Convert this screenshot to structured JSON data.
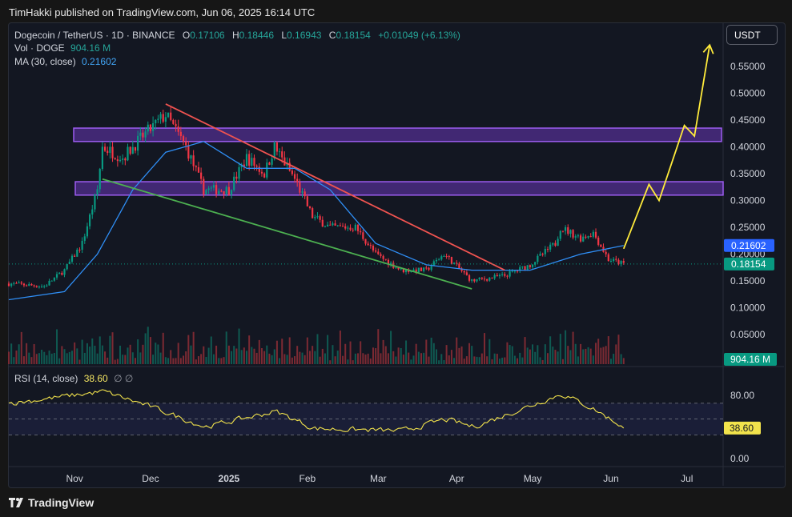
{
  "header": {
    "published": "TimHakki published on TradingView.com, Jun 06, 2025 16:14 UTC"
  },
  "legend": {
    "symbol": "Dogecoin / TetherUS · 1D · BINANCE",
    "o_label": "O",
    "o": "0.17106",
    "h_label": "H",
    "h": "0.18446",
    "l_label": "L",
    "l": "0.16943",
    "c_label": "C",
    "c": "0.18154",
    "change": "+0.01049 (+6.13%)",
    "vol_label": "Vol · DOGE",
    "vol": "904.16 M",
    "ma_label": "MA (30, close)",
    "ma": "0.21602",
    "rsi_label": "RSI (14, close)",
    "rsi": "38.60",
    "rsi_flags": "∅ ∅"
  },
  "currency_button": "USDT",
  "footer": {
    "brand": "TradingView"
  },
  "chart_data": {
    "type": "candlestick",
    "title": "Dogecoin / TetherUS · 1D · BINANCE",
    "price_ticks": [
      "0.55000",
      "0.50000",
      "0.45000",
      "0.40000",
      "0.35000",
      "0.30000",
      "0.25000",
      "0.20000",
      "0.15000",
      "0.10000",
      "0.05000"
    ],
    "price_tick_values": [
      0.55,
      0.5,
      0.45,
      0.4,
      0.35,
      0.3,
      0.25,
      0.2,
      0.15,
      0.1,
      0.05
    ],
    "ylim": [
      0.0,
      0.6
    ],
    "x_labels": [
      "Nov",
      "Dec",
      "2025",
      "Feb",
      "Mar",
      "Apr",
      "May",
      "Jun",
      "Jul"
    ],
    "rsi_ticks": [
      "80.00",
      "0.00"
    ],
    "rsi_tick_values": [
      80,
      0
    ],
    "price_badges": [
      {
        "label": "0.21602",
        "value": 0.21602,
        "color": "#2962ff"
      },
      {
        "label": "0.18154",
        "value": 0.18154,
        "color": "#089981"
      }
    ],
    "volume_badge": "904.16 M",
    "rsi_badge": "38.60",
    "close_series_approx": [
      {
        "x": "2024-10-06",
        "y": 0.145
      },
      {
        "x": "2024-10-20",
        "y": 0.14
      },
      {
        "x": "2024-10-28",
        "y": 0.17
      },
      {
        "x": "2024-11-04",
        "y": 0.22
      },
      {
        "x": "2024-11-10",
        "y": 0.32
      },
      {
        "x": "2024-11-12",
        "y": 0.4
      },
      {
        "x": "2024-11-20",
        "y": 0.38
      },
      {
        "x": "2024-11-28",
        "y": 0.42
      },
      {
        "x": "2024-12-07",
        "y": 0.46
      },
      {
        "x": "2024-12-15",
        "y": 0.4
      },
      {
        "x": "2024-12-22",
        "y": 0.32
      },
      {
        "x": "2025-01-01",
        "y": 0.32
      },
      {
        "x": "2025-01-08",
        "y": 0.38
      },
      {
        "x": "2025-01-15",
        "y": 0.35
      },
      {
        "x": "2025-01-19",
        "y": 0.4
      },
      {
        "x": "2025-01-27",
        "y": 0.34
      },
      {
        "x": "2025-02-03",
        "y": 0.27
      },
      {
        "x": "2025-02-10",
        "y": 0.25
      },
      {
        "x": "2025-02-20",
        "y": 0.25
      },
      {
        "x": "2025-02-28",
        "y": 0.2
      },
      {
        "x": "2025-03-10",
        "y": 0.17
      },
      {
        "x": "2025-03-20",
        "y": 0.17
      },
      {
        "x": "2025-03-27",
        "y": 0.2
      },
      {
        "x": "2025-04-07",
        "y": 0.15
      },
      {
        "x": "2025-04-20",
        "y": 0.16
      },
      {
        "x": "2025-04-30",
        "y": 0.18
      },
      {
        "x": "2025-05-10",
        "y": 0.22
      },
      {
        "x": "2025-05-12",
        "y": 0.25
      },
      {
        "x": "2025-05-20",
        "y": 0.23
      },
      {
        "x": "2025-05-25",
        "y": 0.24
      },
      {
        "x": "2025-05-31",
        "y": 0.19
      },
      {
        "x": "2025-06-06",
        "y": 0.18154
      }
    ],
    "ma_series_approx": [
      {
        "x": "2024-10-06",
        "y": 0.115
      },
      {
        "x": "2024-10-28",
        "y": 0.13
      },
      {
        "x": "2024-11-10",
        "y": 0.2
      },
      {
        "x": "2024-11-24",
        "y": 0.32
      },
      {
        "x": "2024-12-07",
        "y": 0.39
      },
      {
        "x": "2024-12-22",
        "y": 0.41
      },
      {
        "x": "2025-01-08",
        "y": 0.36
      },
      {
        "x": "2025-01-27",
        "y": 0.36
      },
      {
        "x": "2025-02-10",
        "y": 0.32
      },
      {
        "x": "2025-02-28",
        "y": 0.22
      },
      {
        "x": "2025-03-20",
        "y": 0.18
      },
      {
        "x": "2025-04-07",
        "y": 0.17
      },
      {
        "x": "2025-04-30",
        "y": 0.17
      },
      {
        "x": "2025-05-20",
        "y": 0.2
      },
      {
        "x": "2025-06-06",
        "y": 0.21602
      }
    ],
    "zones": [
      {
        "from": 0.41,
        "to": 0.435,
        "color": "#7b3fd6"
      },
      {
        "from": 0.31,
        "to": 0.335,
        "color": "#7b3fd6"
      }
    ],
    "trendlines": [
      {
        "color": "#ef5350",
        "from": {
          "x": "2024-12-07",
          "y": 0.48
        },
        "to": {
          "x": "2025-04-20",
          "y": 0.17
        }
      },
      {
        "color": "#4caf50",
        "from": {
          "x": "2024-11-12",
          "y": 0.34
        },
        "to": {
          "x": "2025-04-07",
          "y": 0.135
        }
      }
    ],
    "projection": {
      "color": "#ffeb3b",
      "points": [
        {
          "x": "2025-06-06",
          "y": 0.21
        },
        {
          "x": "2025-06-16",
          "y": 0.33
        },
        {
          "x": "2025-06-20",
          "y": 0.3
        },
        {
          "x": "2025-06-30",
          "y": 0.44
        },
        {
          "x": "2025-07-04",
          "y": 0.42
        },
        {
          "x": "2025-07-10",
          "y": 0.59
        }
      ]
    },
    "rsi_series_approx": [
      {
        "x": "2024-10-06",
        "y": 70
      },
      {
        "x": "2024-11-12",
        "y": 85
      },
      {
        "x": "2024-12-01",
        "y": 65
      },
      {
        "x": "2024-12-22",
        "y": 40
      },
      {
        "x": "2025-01-19",
        "y": 60
      },
      {
        "x": "2025-02-03",
        "y": 38
      },
      {
        "x": "2025-03-10",
        "y": 35
      },
      {
        "x": "2025-03-27",
        "y": 50
      },
      {
        "x": "2025-04-07",
        "y": 40
      },
      {
        "x": "2025-05-12",
        "y": 82
      },
      {
        "x": "2025-05-25",
        "y": 62
      },
      {
        "x": "2025-06-06",
        "y": 38.6
      }
    ]
  }
}
